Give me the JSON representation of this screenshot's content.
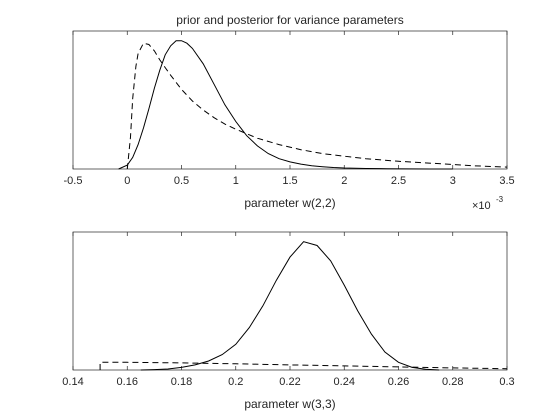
{
  "chart_data": [
    {
      "type": "line",
      "title": "prior and posterior for variance parameters",
      "xlabel": "parameter w(2,2)",
      "x_exponent_label": "× 10^-3",
      "x_multiplier": "×10",
      "x_exponent": "-3",
      "xlim": [
        -0.5,
        3.5
      ],
      "ylim": [
        0,
        1
      ],
      "x_ticks": [
        -0.5,
        0,
        0.5,
        1,
        1.5,
        2,
        2.5,
        3,
        3.5
      ],
      "x_tick_labels": [
        "-0.5",
        "0",
        "0.5",
        "1",
        "1.5",
        "2",
        "2.5",
        "3",
        "3.5"
      ],
      "y_ticks_visible": false,
      "grid": false,
      "series": [
        {
          "style": "solid",
          "x": [
            -0.08,
            0.0,
            0.05,
            0.1,
            0.15,
            0.2,
            0.25,
            0.3,
            0.35,
            0.4,
            0.45,
            0.5,
            0.55,
            0.6,
            0.7,
            0.8,
            0.9,
            1.0,
            1.1,
            1.2,
            1.3,
            1.4,
            1.5,
            1.6,
            1.7,
            1.8,
            1.9,
            2.0,
            2.2,
            2.4,
            2.6,
            2.8,
            3.0
          ],
          "y": [
            0.0,
            0.03,
            0.09,
            0.19,
            0.32,
            0.47,
            0.63,
            0.77,
            0.89,
            0.96,
            1.0,
            1.0,
            0.98,
            0.94,
            0.82,
            0.66,
            0.5,
            0.37,
            0.26,
            0.18,
            0.12,
            0.08,
            0.055,
            0.038,
            0.026,
            0.018,
            0.012,
            0.008,
            0.004,
            0.002,
            0.001,
            0.0,
            0.0
          ]
        },
        {
          "style": "dashed",
          "x": [
            0.0,
            0.03,
            0.05,
            0.08,
            0.1,
            0.15,
            0.2,
            0.25,
            0.3,
            0.35,
            0.4,
            0.5,
            0.6,
            0.7,
            0.8,
            0.9,
            1.0,
            1.2,
            1.4,
            1.6,
            1.8,
            2.0,
            2.2,
            2.5,
            2.8,
            3.0,
            3.2,
            3.5
          ],
          "y": [
            0.0,
            0.25,
            0.55,
            0.8,
            0.9,
            0.98,
            0.97,
            0.92,
            0.85,
            0.79,
            0.73,
            0.62,
            0.53,
            0.46,
            0.4,
            0.35,
            0.31,
            0.24,
            0.19,
            0.15,
            0.12,
            0.1,
            0.08,
            0.06,
            0.045,
            0.035,
            0.025,
            0.015
          ]
        }
      ]
    },
    {
      "type": "line",
      "title": "",
      "xlabel": "parameter w(3,3)",
      "xlim": [
        0.14,
        0.3
      ],
      "ylim": [
        0,
        1
      ],
      "x_ticks": [
        0.14,
        0.16,
        0.18,
        0.2,
        0.22,
        0.24,
        0.26,
        0.28,
        0.3
      ],
      "x_tick_labels": [
        "0.14",
        "0.16",
        "0.18",
        "0.2",
        "0.22",
        "0.24",
        "0.26",
        "0.28",
        "0.3"
      ],
      "y_ticks_visible": false,
      "grid": false,
      "series": [
        {
          "style": "solid",
          "x": [
            0.165,
            0.17,
            0.175,
            0.18,
            0.185,
            0.19,
            0.195,
            0.2,
            0.205,
            0.21,
            0.215,
            0.22,
            0.225,
            0.23,
            0.235,
            0.24,
            0.245,
            0.25,
            0.255,
            0.26,
            0.265,
            0.27,
            0.275
          ],
          "y": [
            0.0,
            0.003,
            0.008,
            0.02,
            0.04,
            0.07,
            0.12,
            0.2,
            0.33,
            0.5,
            0.7,
            0.88,
            1.0,
            0.97,
            0.85,
            0.66,
            0.46,
            0.28,
            0.14,
            0.06,
            0.02,
            0.006,
            0.0
          ]
        },
        {
          "style": "dashed",
          "x": [
            0.15,
            0.15,
            0.16,
            0.18,
            0.2,
            0.22,
            0.24,
            0.26,
            0.28,
            0.3
          ],
          "y": [
            0.0,
            0.06,
            0.06,
            0.055,
            0.048,
            0.04,
            0.032,
            0.024,
            0.016,
            0.01
          ]
        }
      ]
    }
  ]
}
